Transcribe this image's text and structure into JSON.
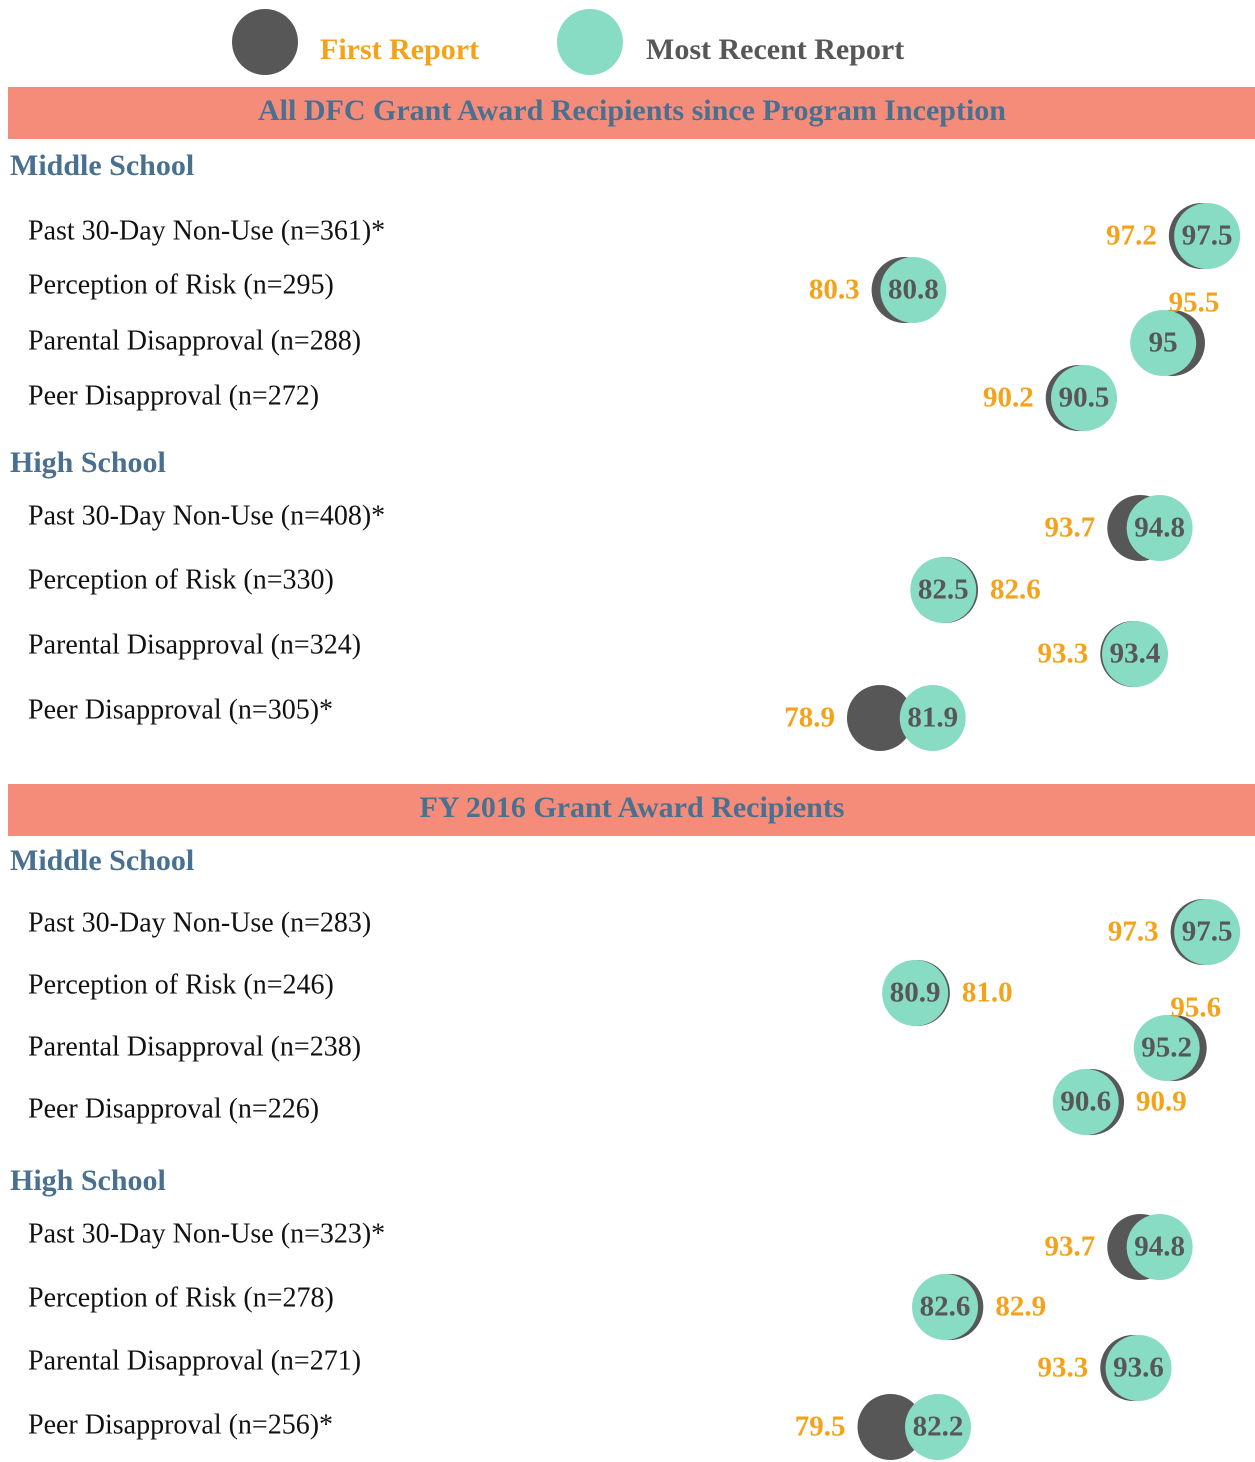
{
  "chart_data": {
    "type": "dot",
    "legend": [
      {
        "name": "First Report",
        "color": "#575757",
        "text_color": "#f5a21b"
      },
      {
        "name": "Most Recent Report",
        "color": "#88dcc4",
        "text_color": "#575757"
      }
    ],
    "xlim": [
      57.3,
      98.8
    ],
    "sections": [
      {
        "title": "All DFC Grant Award Recipients since Program Inception",
        "groups": [
          {
            "title": "Middle School",
            "categories": [
              "Past 30-Day Non-Use (n=361)*",
              "Perception of Risk (n=295)",
              "Parental Disapproval (n=288)",
              "Peer Disapproval (n=272)"
            ],
            "first": [
              97.2,
              80.3,
              95.5,
              90.2
            ],
            "recent": [
              97.5,
              80.8,
              95,
              90.5
            ]
          },
          {
            "title": "High School",
            "categories": [
              "Past 30-Day Non-Use (n=408)*",
              "Perception of Risk (n=330)",
              "Parental Disapproval (n=324)",
              "Peer Disapproval (n=305)*"
            ],
            "first": [
              93.7,
              82.6,
              93.3,
              78.9
            ],
            "recent": [
              94.8,
              82.5,
              93.4,
              81.9
            ]
          }
        ]
      },
      {
        "title": "FY 2016 Grant Award Recipients",
        "groups": [
          {
            "title": "Middle School",
            "categories": [
              "Past 30-Day Non-Use (n=283)",
              "Perception of Risk (n=246)",
              "Parental Disapproval (n=238)",
              "Peer Disapproval (n=226)"
            ],
            "first": [
              97.3,
              81,
              95.6,
              90.9
            ],
            "first_value_labels": [
              "97.3",
              "81.0",
              "95.6",
              "90.9"
            ],
            "recent": [
              97.5,
              80.9,
              95.2,
              90.6
            ]
          },
          {
            "title": "High School",
            "categories": [
              "Past 30-Day Non-Use (n=323)*",
              "Perception of Risk (n=278)",
              "Parental Disapproval (n=271)",
              "Peer Disapproval (n=256)*"
            ],
            "first": [
              93.7,
              82.9,
              93.3,
              79.5
            ],
            "recent": [
              94.8,
              82.6,
              93.6,
              82.2
            ]
          }
        ]
      }
    ]
  }
}
